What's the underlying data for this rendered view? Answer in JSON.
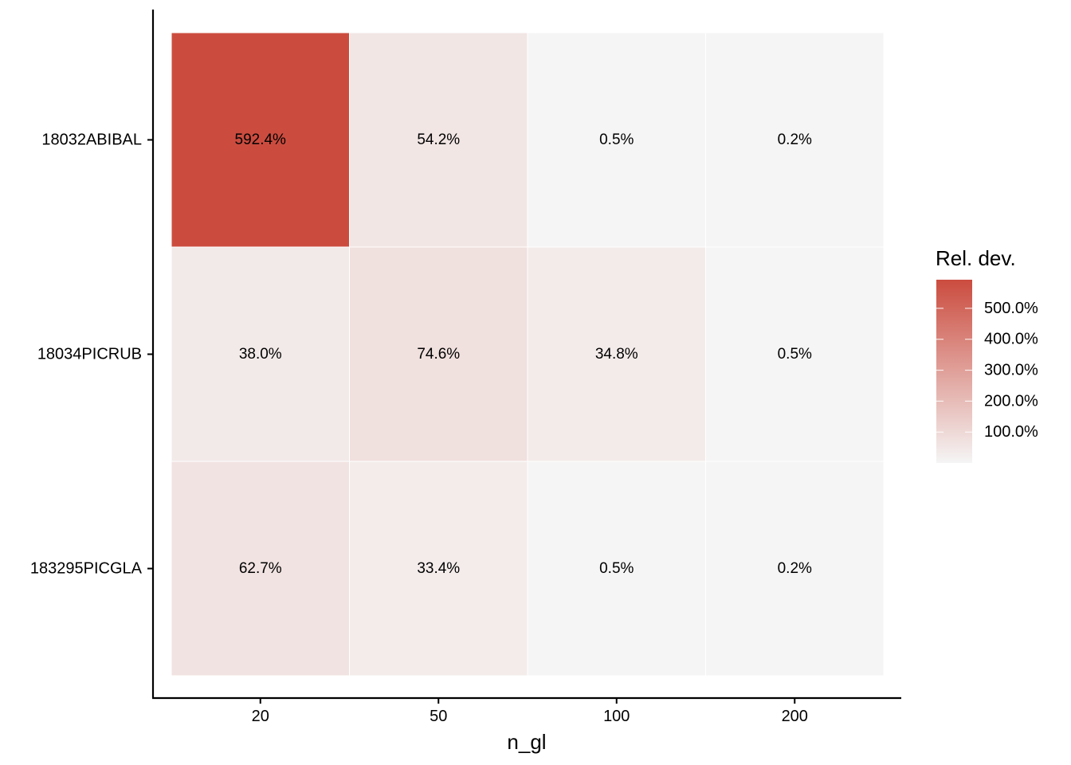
{
  "chart_data": {
    "type": "heatmap",
    "xlabel": "n_gl",
    "ylabel": "",
    "x_categories": [
      "20",
      "50",
      "100",
      "200"
    ],
    "y_categories": [
      "18032ABIBAL",
      "18034PICRUB",
      "183295PICGLA"
    ],
    "values": [
      [
        592.4,
        54.2,
        0.5,
        0.2
      ],
      [
        38.0,
        74.6,
        34.8,
        0.5
      ],
      [
        62.7,
        33.4,
        0.5,
        0.2
      ]
    ],
    "cell_labels": [
      [
        "592.4%",
        "54.2%",
        "0.5%",
        "0.2%"
      ],
      [
        "38.0%",
        "74.6%",
        "34.8%",
        "0.5%"
      ],
      [
        "62.7%",
        "33.4%",
        "0.5%",
        "0.2%"
      ]
    ],
    "legend": {
      "title": "Rel. dev.",
      "placement": "right",
      "breaks": [
        100,
        200,
        300,
        400,
        500
      ],
      "break_labels": [
        "100.0%",
        "200.0%",
        "300.0%",
        "400.0%",
        "500.0%"
      ],
      "range": [
        0.2,
        592.4
      ],
      "low_color": "#f5f5f5",
      "high_color": "#cb4c3f"
    },
    "grid": false
  }
}
